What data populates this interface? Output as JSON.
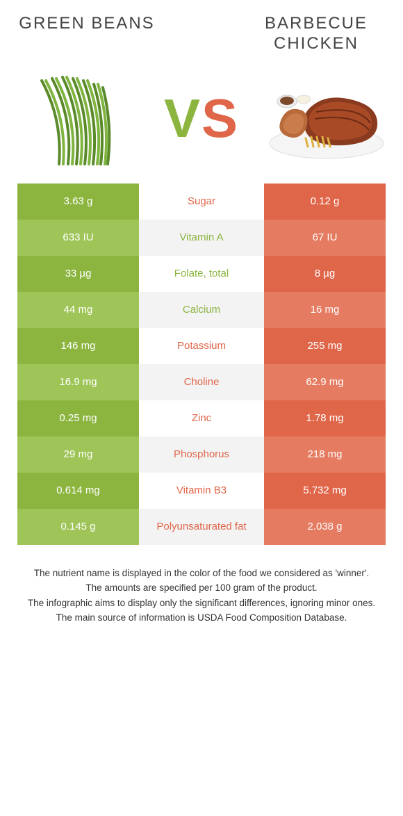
{
  "colors": {
    "left_dark": "#8bb53f",
    "left_light": "#9fc559",
    "right_dark": "#e0664a",
    "right_light": "#e57b61",
    "winner_left": "#8bb53f",
    "winner_right": "#e0664a",
    "title_text": "#444444",
    "body_text": "#333333",
    "row_alt_bg": "#f3f3f3",
    "white": "#ffffff"
  },
  "left": {
    "title": "Green beans"
  },
  "right": {
    "title": "Barbecue chicken"
  },
  "vs": {
    "v": "V",
    "s": "S"
  },
  "rows": [
    {
      "nutrient": "Sugar",
      "left": "3.63 g",
      "right": "0.12 g",
      "winner": "right"
    },
    {
      "nutrient": "Vitamin A",
      "left": "633 IU",
      "right": "67 IU",
      "winner": "left"
    },
    {
      "nutrient": "Folate, total",
      "left": "33 µg",
      "right": "8 µg",
      "winner": "left"
    },
    {
      "nutrient": "Calcium",
      "left": "44 mg",
      "right": "16 mg",
      "winner": "left"
    },
    {
      "nutrient": "Potassium",
      "left": "146 mg",
      "right": "255 mg",
      "winner": "right"
    },
    {
      "nutrient": "Choline",
      "left": "16.9 mg",
      "right": "62.9 mg",
      "winner": "right"
    },
    {
      "nutrient": "Zinc",
      "left": "0.25 mg",
      "right": "1.78 mg",
      "winner": "right"
    },
    {
      "nutrient": "Phosphorus",
      "left": "29 mg",
      "right": "218 mg",
      "winner": "right"
    },
    {
      "nutrient": "Vitamin B3",
      "left": "0.614 mg",
      "right": "5.732 mg",
      "winner": "right"
    },
    {
      "nutrient": "Polyunsaturated fat",
      "left": "0.145 g",
      "right": "2.038 g",
      "winner": "right"
    }
  ],
  "footer": {
    "line1": "The nutrient name is displayed in the color of the food we considered as 'winner'.",
    "line2": "The amounts are specified per 100 gram of the product.",
    "line3": "The infographic aims to display only the significant differences, ignoring minor ones.",
    "line4": "The main source of information is USDA Food Composition Database."
  }
}
